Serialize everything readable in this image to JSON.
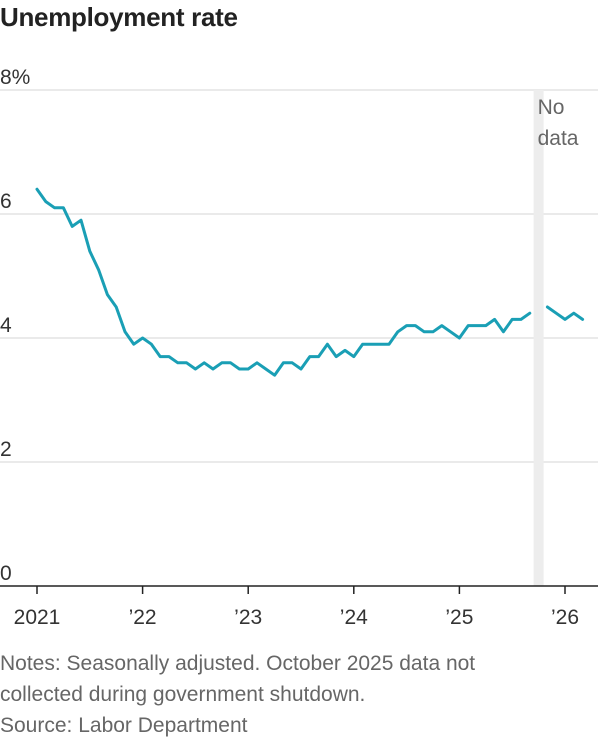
{
  "chart_data": {
    "type": "line",
    "title": "Unemployment rate",
    "ylim": [
      0,
      8
    ],
    "y_ticks": [
      {
        "value": 8,
        "label": "8%"
      },
      {
        "value": 6,
        "label": "6"
      },
      {
        "value": 4,
        "label": "4"
      },
      {
        "value": 2,
        "label": "2"
      },
      {
        "value": 0,
        "label": "0"
      }
    ],
    "x_ticks": [
      {
        "year": 2021,
        "label": "2021"
      },
      {
        "year": 2022,
        "label": "’22"
      },
      {
        "year": 2023,
        "label": "’23"
      },
      {
        "year": 2024,
        "label": "’24"
      },
      {
        "year": 2025,
        "label": "’25"
      },
      {
        "year": 2026,
        "label": "’26"
      }
    ],
    "annotation": {
      "lines": [
        "No",
        "data"
      ],
      "month": "2025-10"
    },
    "grid": true,
    "color": "#1a9fb5",
    "series": [
      {
        "x": [
          "2021-01",
          "2021-02",
          "2021-03",
          "2021-04",
          "2021-05",
          "2021-06",
          "2021-07",
          "2021-08",
          "2021-09",
          "2021-10",
          "2021-11",
          "2021-12",
          "2022-01",
          "2022-02",
          "2022-03",
          "2022-04",
          "2022-05",
          "2022-06",
          "2022-07",
          "2022-08",
          "2022-09",
          "2022-10",
          "2022-11",
          "2022-12",
          "2023-01",
          "2023-02",
          "2023-03",
          "2023-04",
          "2023-05",
          "2023-06",
          "2023-07",
          "2023-08",
          "2023-09",
          "2023-10",
          "2023-11",
          "2023-12",
          "2024-01",
          "2024-02",
          "2024-03",
          "2024-04",
          "2024-05",
          "2024-06",
          "2024-07",
          "2024-08",
          "2024-09",
          "2024-10",
          "2024-11",
          "2024-12",
          "2025-01",
          "2025-02",
          "2025-03",
          "2025-04",
          "2025-05",
          "2025-06",
          "2025-07",
          "2025-08",
          "2025-09",
          "2025-10",
          "2025-11",
          "2025-12",
          "2026-01",
          "2026-02",
          "2026-03"
        ],
        "values": [
          6.4,
          6.2,
          6.1,
          6.1,
          5.8,
          5.9,
          5.4,
          5.1,
          4.7,
          4.5,
          4.1,
          3.9,
          4.0,
          3.9,
          3.7,
          3.7,
          3.6,
          3.6,
          3.5,
          3.6,
          3.5,
          3.6,
          3.6,
          3.5,
          3.5,
          3.6,
          3.5,
          3.4,
          3.6,
          3.6,
          3.5,
          3.7,
          3.7,
          3.9,
          3.7,
          3.8,
          3.7,
          3.9,
          3.9,
          3.9,
          3.9,
          4.1,
          4.2,
          4.2,
          4.1,
          4.1,
          4.2,
          4.1,
          4.0,
          4.2,
          4.2,
          4.2,
          4.3,
          4.1,
          4.3,
          4.3,
          4.4,
          null,
          4.5,
          4.4,
          4.3,
          4.4,
          4.3
        ]
      }
    ]
  },
  "notes": {
    "line1": "Notes: Seasonally adjusted. October 2025 data not",
    "line2": "collected during government shutdown.",
    "source": "Source: Labor Department"
  }
}
